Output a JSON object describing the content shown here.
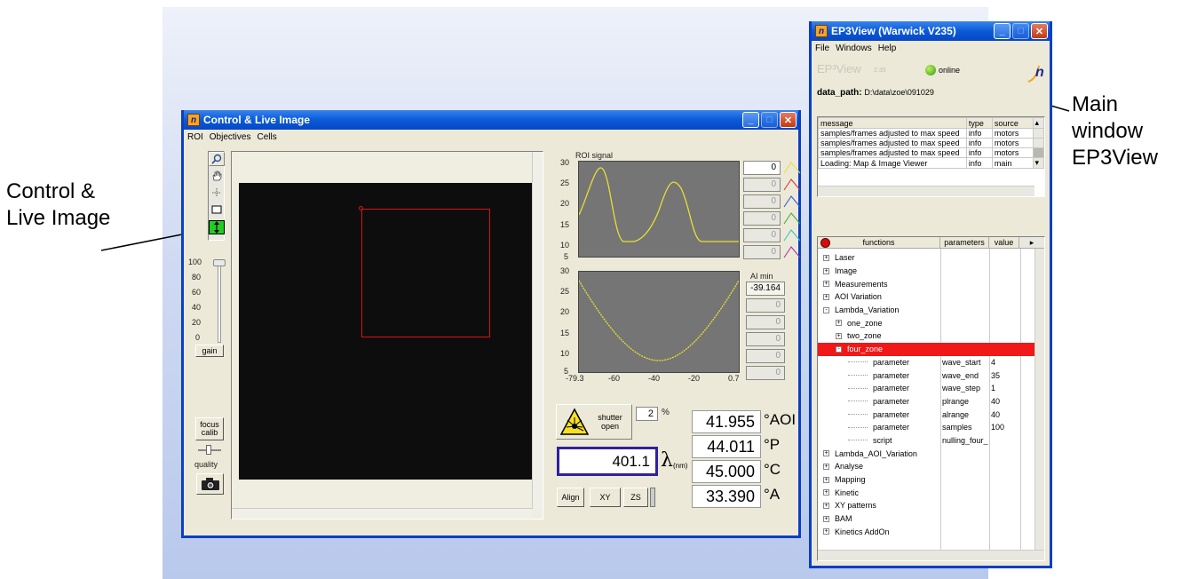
{
  "annotations": {
    "left_line1": "Control &",
    "left_line2": "Live Image",
    "right_line1": "Main",
    "right_line2": "window",
    "right_line3": "EP3View"
  },
  "control_window": {
    "title": "Control & Live Image",
    "menu": [
      "ROI",
      "Objectives",
      "Cells"
    ],
    "tools": [
      "zoom-icon",
      "hand-icon",
      "crosshair-icon",
      "rectangle-icon",
      "arrow-updown-icon"
    ],
    "gain_ticks": [
      "100",
      "80",
      "60",
      "40",
      "20",
      "0"
    ],
    "gain_label": "gain",
    "focus_label": "focus calib",
    "quality_label": "quality",
    "roi_chart": {
      "title": "ROI signal",
      "y_ticks": [
        "30",
        "25",
        "20",
        "15",
        "10",
        "5"
      ]
    },
    "roi_inputs": [
      "0",
      "0",
      "0",
      "0",
      "0",
      "0"
    ],
    "ai_chart": {
      "y_ticks": [
        "30",
        "25",
        "20",
        "15",
        "10",
        "5"
      ],
      "x_ticks": [
        "-79.3",
        "-60",
        "-40",
        "-20",
        "0.7"
      ]
    },
    "ai_label": "AI min",
    "ai_values": [
      "-39.164",
      "0",
      "0",
      "0",
      "0",
      "0"
    ],
    "shutter_label": "shutter open",
    "percent_value": "2",
    "percent_unit": "%",
    "lambda_value": "401.1",
    "lambda_symbol": "λ",
    "lambda_unit": "(nm)",
    "angles": [
      {
        "value": "41.955",
        "unit": "°AOI"
      },
      {
        "value": "44.011",
        "unit": "°P"
      },
      {
        "value": "45.000",
        "unit": "°C"
      },
      {
        "value": "33.390",
        "unit": "°A"
      }
    ],
    "buttons": {
      "align": "Align",
      "xy": "XY",
      "zs": "ZS"
    }
  },
  "ep3_window": {
    "title": "EP3View  (Warwick V235)",
    "menu": [
      "File",
      "Windows",
      "Help"
    ],
    "logo_text": "EP³View",
    "version": "2.35",
    "status": "online",
    "data_path_label": "data_path:",
    "data_path_value": "D:\\data\\zoe\\091029",
    "log_headers": [
      "message",
      "type",
      "source"
    ],
    "log_rows": [
      [
        "samples/frames adjusted to max speed",
        "info",
        "motors"
      ],
      [
        "samples/frames adjusted to max speed",
        "info",
        "motors"
      ],
      [
        "samples/frames adjusted to max speed",
        "info",
        "motors"
      ],
      [
        "Loading: Map & Image Viewer",
        "info",
        "main"
      ]
    ],
    "tree_headers": [
      "functions",
      "parameters",
      "value"
    ],
    "tree_rows": [
      {
        "label": "Laser",
        "indent": 0,
        "exp": "+",
        "param": "",
        "value": ""
      },
      {
        "label": "Image",
        "indent": 0,
        "exp": "+",
        "param": "",
        "value": ""
      },
      {
        "label": "Measurements",
        "indent": 0,
        "exp": "+",
        "param": "",
        "value": ""
      },
      {
        "label": "AOI Variation",
        "indent": 0,
        "exp": "+",
        "param": "",
        "value": ""
      },
      {
        "label": "Lambda_Variation",
        "indent": 0,
        "exp": "-",
        "param": "",
        "value": ""
      },
      {
        "label": "one_zone",
        "indent": 1,
        "exp": "+",
        "param": "",
        "value": ""
      },
      {
        "label": "two_zone",
        "indent": 1,
        "exp": "+",
        "param": "",
        "value": ""
      },
      {
        "label": "four_zone",
        "indent": 1,
        "exp": "-",
        "param": "",
        "value": "",
        "selected": true
      },
      {
        "label": "parameter",
        "indent": 2,
        "exp": "",
        "param": "wave_start",
        "value": "4"
      },
      {
        "label": "parameter",
        "indent": 2,
        "exp": "",
        "param": "wave_end",
        "value": "35"
      },
      {
        "label": "parameter",
        "indent": 2,
        "exp": "",
        "param": "wave_step",
        "value": "1"
      },
      {
        "label": "parameter",
        "indent": 2,
        "exp": "",
        "param": "plrange",
        "value": "40"
      },
      {
        "label": "parameter",
        "indent": 2,
        "exp": "",
        "param": "alrange",
        "value": "40"
      },
      {
        "label": "parameter",
        "indent": 2,
        "exp": "",
        "param": "samples",
        "value": "100"
      },
      {
        "label": "script",
        "indent": 2,
        "exp": "",
        "param": "nulling_four_",
        "value": ""
      },
      {
        "label": "Lambda_AOI_Variation",
        "indent": 0,
        "exp": "+",
        "param": "",
        "value": ""
      },
      {
        "label": "Analyse",
        "indent": 0,
        "exp": "+",
        "param": "",
        "value": ""
      },
      {
        "label": "Mapping",
        "indent": 0,
        "exp": "+",
        "param": "",
        "value": ""
      },
      {
        "label": "Kinetic",
        "indent": 0,
        "exp": "+",
        "param": "",
        "value": ""
      },
      {
        "label": "XY patterns",
        "indent": 0,
        "exp": "+",
        "param": "",
        "value": ""
      },
      {
        "label": "BAM",
        "indent": 0,
        "exp": "+",
        "param": "",
        "value": ""
      },
      {
        "label": "Kinetics AddOn",
        "indent": 0,
        "exp": "+",
        "param": "",
        "value": ""
      }
    ]
  }
}
